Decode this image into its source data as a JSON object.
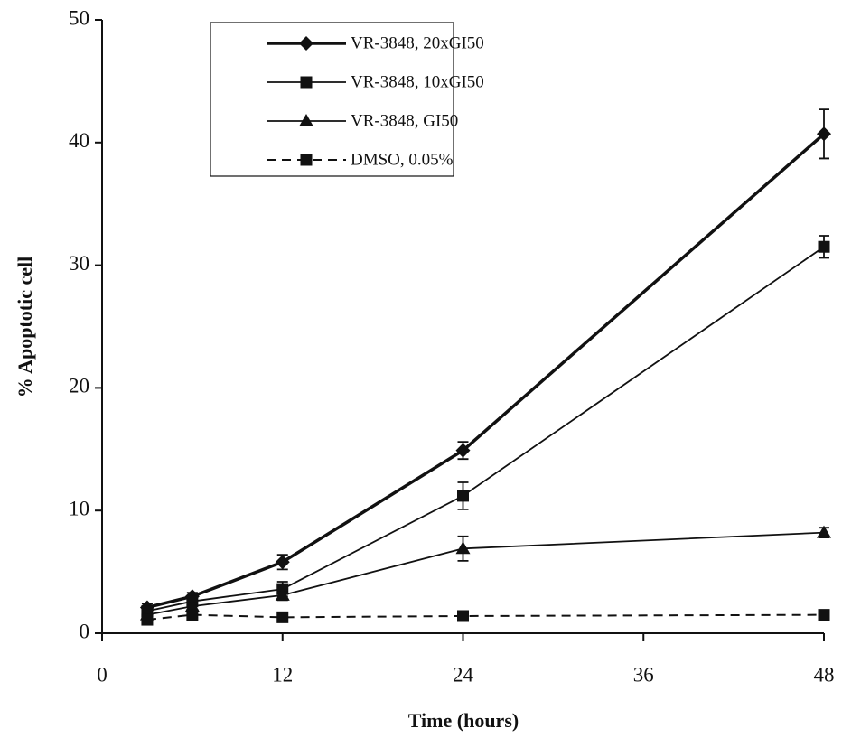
{
  "chart_data": {
    "type": "line",
    "x_label": "Time (hours)",
    "y_label": "% Apoptotic cell",
    "xlim": [
      0,
      48
    ],
    "xticks": [
      0,
      12,
      24,
      36,
      48
    ],
    "ylim": [
      0,
      50
    ],
    "yticks": [
      0,
      10,
      20,
      30,
      40,
      50
    ],
    "legend": "top-center",
    "series": [
      {
        "name": "VR-3848, 20xGI50",
        "color": "#111111",
        "marker": "diamond",
        "linestyle": "thick",
        "x": [
          3,
          6,
          12,
          24,
          48
        ],
        "values": [
          2.1,
          3.0,
          5.8,
          14.9,
          40.7
        ],
        "errors": [
          0.3,
          0.3,
          0.6,
          0.7,
          2.0
        ]
      },
      {
        "name": "VR-3848, 10xGI50",
        "color": "#111111",
        "marker": "square",
        "linestyle": "solid",
        "x": [
          3,
          6,
          12,
          24,
          48
        ],
        "values": [
          1.8,
          2.6,
          3.6,
          11.2,
          31.5
        ],
        "errors": [
          0.3,
          0.3,
          0.6,
          1.1,
          0.9
        ]
      },
      {
        "name": "VR-3848, GI50",
        "color": "#111111",
        "marker": "triangle",
        "linestyle": "solid",
        "x": [
          3,
          6,
          12,
          24,
          48
        ],
        "values": [
          1.5,
          2.2,
          3.1,
          6.9,
          8.2
        ],
        "errors": [
          0.2,
          0.3,
          0.4,
          1.0,
          0.4
        ]
      },
      {
        "name": "DMSO, 0.05%",
        "color": "#111111",
        "marker": "square",
        "linestyle": "dashed",
        "x": [
          3,
          6,
          12,
          24,
          48
        ],
        "values": [
          1.1,
          1.5,
          1.3,
          1.4,
          1.5
        ],
        "errors": [
          0.2,
          0.2,
          0.2,
          0.2,
          0.2
        ]
      }
    ]
  }
}
